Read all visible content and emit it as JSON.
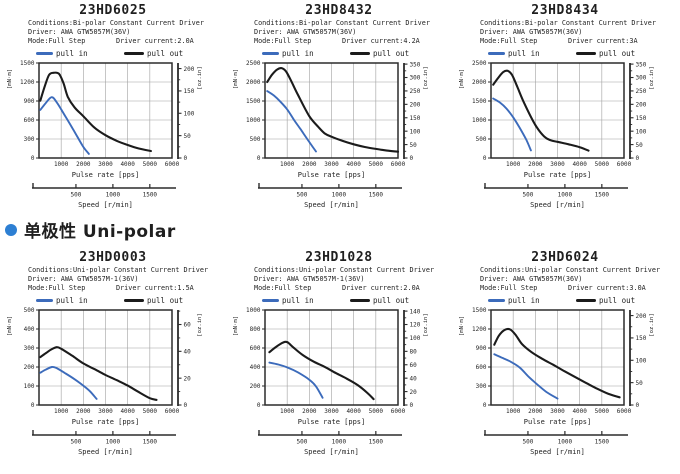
{
  "section_heading": {
    "bullet_color": "#2d7fd3",
    "text": "单极性 Uni-polar"
  },
  "legend": {
    "pull_in": "pull in",
    "pull_out": "pull out"
  },
  "colors": {
    "pull_in": "#3c6bbb",
    "pull_out": "#1b1b1b",
    "grid": "#a0a0a0",
    "axis": "#2b2b2b",
    "text": "#1f1f1f"
  },
  "axis_text": {
    "x_label": "Pulse rate [pps]",
    "speed_label": "Speed [r/min]",
    "left_unit": "[mN·m]",
    "right_unit": "[oz.in]"
  },
  "speed": {
    "pps_per_rpm": 3.3333
  },
  "mNm_per_ozin": 7.06,
  "chart_data": [
    {
      "type": "line",
      "title": "23HD6025",
      "conditions": "Conditions:Bi-polar Constant Current Driver",
      "driver": "Driver: AWA GTW5057M(36V)",
      "mode": "Mode:Full Step",
      "current": "Driver current:2.0A",
      "x": {
        "label": "Pulse rate [pps]",
        "min": 0,
        "max": 6000,
        "ticks": [
          1000,
          2000,
          3000,
          4000,
          5000,
          6000
        ]
      },
      "y_left": {
        "unit": "[mN·m]",
        "min": 0,
        "max": 1500,
        "ticks": [
          0,
          300,
          600,
          900,
          1200,
          1500
        ]
      },
      "y_right": {
        "unit": "[oz.in]",
        "ticks": [
          0,
          50,
          100,
          150,
          200
        ]
      },
      "speed_ticks": [
        500,
        1000,
        1500
      ],
      "series": [
        {
          "name": "pull in",
          "color": "#3c6bbb",
          "width": 1.9,
          "points": [
            [
              60,
              760
            ],
            [
              300,
              865
            ],
            [
              570,
              960
            ],
            [
              800,
              880
            ],
            [
              1200,
              650
            ],
            [
              1600,
              415
            ],
            [
              2000,
              175
            ],
            [
              2250,
              65
            ]
          ]
        },
        {
          "name": "pull out",
          "color": "#1b1b1b",
          "width": 2.1,
          "points": [
            [
              60,
              905
            ],
            [
              250,
              1120
            ],
            [
              450,
              1310
            ],
            [
              650,
              1345
            ],
            [
              900,
              1330
            ],
            [
              1100,
              1185
            ],
            [
              1300,
              965
            ],
            [
              1600,
              800
            ],
            [
              2000,
              660
            ],
            [
              2500,
              480
            ],
            [
              3000,
              360
            ],
            [
              3500,
              272
            ],
            [
              4000,
              205
            ],
            [
              4500,
              150
            ],
            [
              5050,
              110
            ]
          ]
        }
      ]
    },
    {
      "type": "line",
      "title": "23HD8432",
      "conditions": "Conditions:Bi-polar Constant Current Driver",
      "driver": "Driver: AWA GTW5057M(36V)",
      "mode": "Mode:Full Step",
      "current": "Driver current:4.2A",
      "x": {
        "label": "Pulse rate [pps]",
        "min": 0,
        "max": 6000,
        "ticks": [
          1000,
          2000,
          3000,
          4000,
          5000,
          6000
        ]
      },
      "y_left": {
        "unit": "[mN·m]",
        "min": 0,
        "max": 2500,
        "ticks": [
          0,
          500,
          1000,
          1500,
          2000,
          2500
        ]
      },
      "y_right": {
        "unit": "[oz.in]",
        "ticks": [
          0,
          50,
          100,
          150,
          200,
          250,
          300,
          350
        ]
      },
      "speed_ticks": [
        500,
        1000,
        1500
      ],
      "series": [
        {
          "name": "pull in",
          "color": "#3c6bbb",
          "width": 1.9,
          "points": [
            [
              100,
              1760
            ],
            [
              400,
              1645
            ],
            [
              700,
              1480
            ],
            [
              1000,
              1280
            ],
            [
              1300,
              1010
            ],
            [
              1600,
              760
            ],
            [
              2000,
              420
            ],
            [
              2300,
              170
            ]
          ]
        },
        {
          "name": "pull out",
          "color": "#1b1b1b",
          "width": 2.1,
          "points": [
            [
              100,
              2000
            ],
            [
              300,
              2180
            ],
            [
              550,
              2330
            ],
            [
              750,
              2365
            ],
            [
              950,
              2275
            ],
            [
              1200,
              2005
            ],
            [
              1500,
              1645
            ],
            [
              2000,
              1100
            ],
            [
              2400,
              820
            ],
            [
              2700,
              645
            ],
            [
              3000,
              560
            ],
            [
              3500,
              450
            ],
            [
              4000,
              360
            ],
            [
              4500,
              290
            ],
            [
              5000,
              240
            ],
            [
              5500,
              195
            ],
            [
              6000,
              165
            ]
          ]
        }
      ]
    },
    {
      "type": "line",
      "title": "23HD8434",
      "conditions": "Conditions:Bi-polar Constant Current Driver",
      "driver": "Driver: AWA GTW5057M(36V)",
      "mode": "Mode:Full Step",
      "current": "Driver current:3A",
      "x": {
        "label": "Pulse rate [pps]",
        "min": 0,
        "max": 6000,
        "ticks": [
          1000,
          2000,
          3000,
          4000,
          5000,
          6000
        ]
      },
      "y_left": {
        "unit": "[mN·m]",
        "min": 0,
        "max": 2500,
        "ticks": [
          0,
          500,
          1000,
          1500,
          2000,
          2500
        ]
      },
      "y_right": {
        "unit": "[oz.in]",
        "ticks": [
          0,
          50,
          100,
          150,
          200,
          250,
          300,
          350
        ]
      },
      "speed_ticks": [
        500,
        1000,
        1500
      ],
      "series": [
        {
          "name": "pull in",
          "color": "#3c6bbb",
          "width": 1.9,
          "points": [
            [
              100,
              1565
            ],
            [
              400,
              1460
            ],
            [
              700,
              1300
            ],
            [
              1000,
              1070
            ],
            [
              1300,
              790
            ],
            [
              1600,
              470
            ],
            [
              1800,
              200
            ]
          ]
        },
        {
          "name": "pull out",
          "color": "#1b1b1b",
          "width": 2.1,
          "points": [
            [
              100,
              1930
            ],
            [
              300,
              2090
            ],
            [
              550,
              2260
            ],
            [
              750,
              2295
            ],
            [
              950,
              2185
            ],
            [
              1200,
              1855
            ],
            [
              1500,
              1440
            ],
            [
              2000,
              870
            ],
            [
              2400,
              565
            ],
            [
              2700,
              465
            ],
            [
              3000,
              425
            ],
            [
              3500,
              360
            ],
            [
              4000,
              285
            ],
            [
              4400,
              195
            ]
          ]
        }
      ]
    },
    {
      "type": "line",
      "title": "23HD0003",
      "conditions": "Conditions:Uni-polar Constant Current Driver",
      "driver": "Driver: AWA GTW5057M-1(36V)",
      "mode": "Mode:Full Step",
      "current": "Driver current:1.5A",
      "x": {
        "label": "Pulse rate [pps]",
        "min": 0,
        "max": 6000,
        "ticks": [
          1000,
          2000,
          3000,
          4000,
          5000,
          6000
        ]
      },
      "y_left": {
        "unit": "[mN·m]",
        "min": 0,
        "max": 500,
        "ticks": [
          0,
          100,
          200,
          300,
          400,
          500
        ]
      },
      "y_right": {
        "unit": "[oz.in]",
        "ticks": [
          0,
          20,
          40,
          60
        ]
      },
      "speed_ticks": [
        500,
        1000,
        1500
      ],
      "series": [
        {
          "name": "pull in",
          "color": "#3c6bbb",
          "width": 1.9,
          "points": [
            [
              60,
              170
            ],
            [
              300,
              186
            ],
            [
              580,
              200
            ],
            [
              800,
              194
            ],
            [
              1200,
              166
            ],
            [
              1600,
              136
            ],
            [
              2000,
              102
            ],
            [
              2300,
              72
            ],
            [
              2600,
              32
            ]
          ]
        },
        {
          "name": "pull out",
          "color": "#1b1b1b",
          "width": 2.1,
          "points": [
            [
              60,
              252
            ],
            [
              300,
              272
            ],
            [
              550,
              292
            ],
            [
              800,
              304
            ],
            [
              1000,
              296
            ],
            [
              1500,
              259
            ],
            [
              2000,
              219
            ],
            [
              2500,
              189
            ],
            [
              3000,
              158
            ],
            [
              3500,
              131
            ],
            [
              4000,
              102
            ],
            [
              4500,
              68
            ],
            [
              5000,
              36
            ],
            [
              5300,
              27
            ]
          ]
        }
      ]
    },
    {
      "type": "line",
      "title": "23HD1028",
      "conditions": "Conditions:Uni-polar Constant Current Driver",
      "driver": "Driver: AWA GTW5057M-1(36V)",
      "mode": "Mode:Full Step",
      "current": "Driver current:2.0A",
      "x": {
        "label": "Pulse rate [pps]",
        "min": 0,
        "max": 6000,
        "ticks": [
          1000,
          2000,
          3000,
          4000,
          5000,
          6000
        ]
      },
      "y_left": {
        "unit": "[mN·m]",
        "min": 0,
        "max": 1000,
        "ticks": [
          0,
          200,
          400,
          600,
          800,
          1000
        ]
      },
      "y_right": {
        "unit": "[oz.in]",
        "ticks": [
          0,
          20,
          40,
          60,
          80,
          100,
          120,
          140
        ]
      },
      "speed_ticks": [
        500,
        1000,
        1500
      ],
      "series": [
        {
          "name": "pull in",
          "color": "#3c6bbb",
          "width": 1.9,
          "points": [
            [
              200,
              446
            ],
            [
              600,
              426
            ],
            [
              1000,
              396
            ],
            [
              1500,
              341
            ],
            [
              2000,
              266
            ],
            [
              2300,
              196
            ],
            [
              2600,
              76
            ]
          ]
        },
        {
          "name": "pull out",
          "color": "#1b1b1b",
          "width": 2.1,
          "points": [
            [
              200,
              556
            ],
            [
              500,
              612
            ],
            [
              800,
              656
            ],
            [
              1000,
              662
            ],
            [
              1300,
              602
            ],
            [
              1700,
              526
            ],
            [
              2200,
              456
            ],
            [
              2700,
              401
            ],
            [
              3200,
              336
            ],
            [
              3700,
              276
            ],
            [
              4200,
              206
            ],
            [
              4600,
              131
            ],
            [
              4900,
              62
            ]
          ]
        }
      ]
    },
    {
      "type": "line",
      "title": "23HD6024",
      "conditions": "Conditions:Uni-polar Constant Current Driver",
      "driver": "Driver: AWA GTW5057M(36V)",
      "mode": "Mode:Full Step",
      "current": "Driver current:3.0A",
      "x": {
        "label": "Pulse rate [pps]",
        "min": 0,
        "max": 6000,
        "ticks": [
          1000,
          2000,
          3000,
          4000,
          5000,
          6000
        ]
      },
      "y_left": {
        "unit": "[mN·m]",
        "min": 0,
        "max": 1500,
        "ticks": [
          0,
          300,
          600,
          900,
          1200,
          1500
        ]
      },
      "y_right": {
        "unit": "[oz.in]",
        "ticks": [
          0,
          50,
          100,
          150,
          200
        ]
      },
      "speed_ticks": [
        500,
        1000,
        1500
      ],
      "series": [
        {
          "name": "pull in",
          "color": "#3c6bbb",
          "width": 1.9,
          "points": [
            [
              150,
              800
            ],
            [
              500,
              746
            ],
            [
              900,
              681
            ],
            [
              1300,
              591
            ],
            [
              1700,
              446
            ],
            [
              2100,
              321
            ],
            [
              2500,
              206
            ],
            [
              3000,
              101
            ]
          ]
        },
        {
          "name": "pull out",
          "color": "#1b1b1b",
          "width": 2.1,
          "points": [
            [
              150,
              952
            ],
            [
              350,
              1092
            ],
            [
              600,
              1182
            ],
            [
              850,
              1196
            ],
            [
              1100,
              1112
            ],
            [
              1400,
              962
            ],
            [
              1800,
              841
            ],
            [
              2300,
              731
            ],
            [
              2800,
              636
            ],
            [
              3300,
              536
            ],
            [
              3800,
              441
            ],
            [
              4300,
              346
            ],
            [
              4800,
              256
            ],
            [
              5300,
              176
            ],
            [
              5800,
              121
            ]
          ]
        }
      ]
    }
  ]
}
